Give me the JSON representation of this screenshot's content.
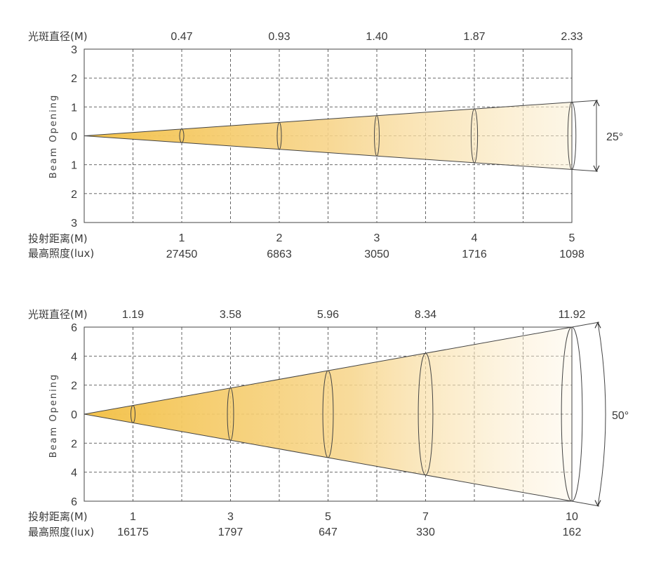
{
  "labels": {
    "spot_diameter": "光斑直径(M)",
    "throw_distance": "投射距离(M)",
    "max_illuminance": "最高照度(lux)"
  },
  "chart_data": [
    {
      "type": "beam-cone",
      "ylabel": "Beam Opening",
      "beam_angle": "25°",
      "y_ticks": [
        "3",
        "2",
        "1",
        "0",
        "1",
        "2",
        "3"
      ],
      "ylim": [
        -3,
        3
      ],
      "xlim": [
        0,
        5
      ],
      "distances": [
        "1",
        "2",
        "3",
        "4",
        "5"
      ],
      "spot_diameters": [
        "0.47",
        "0.93",
        "1.40",
        "1.87",
        "2.33"
      ],
      "illuminance": [
        "27450",
        "6863",
        "3050",
        "1716",
        "1098"
      ],
      "color": "#f5c64e"
    },
    {
      "type": "beam-cone",
      "ylabel": "Beam Opening",
      "beam_angle": "50°",
      "y_ticks": [
        "6",
        "4",
        "2",
        "0",
        "2",
        "4",
        "6"
      ],
      "ylim": [
        -6,
        6
      ],
      "xlim": [
        0,
        10
      ],
      "distances": [
        "1",
        "3",
        "5",
        "7",
        "10"
      ],
      "spot_diameters": [
        "1.19",
        "3.58",
        "5.96",
        "8.34",
        "11.92"
      ],
      "illuminance": [
        "16175",
        "1797",
        "647",
        "330",
        "162"
      ],
      "color": "#f5c64e"
    }
  ]
}
